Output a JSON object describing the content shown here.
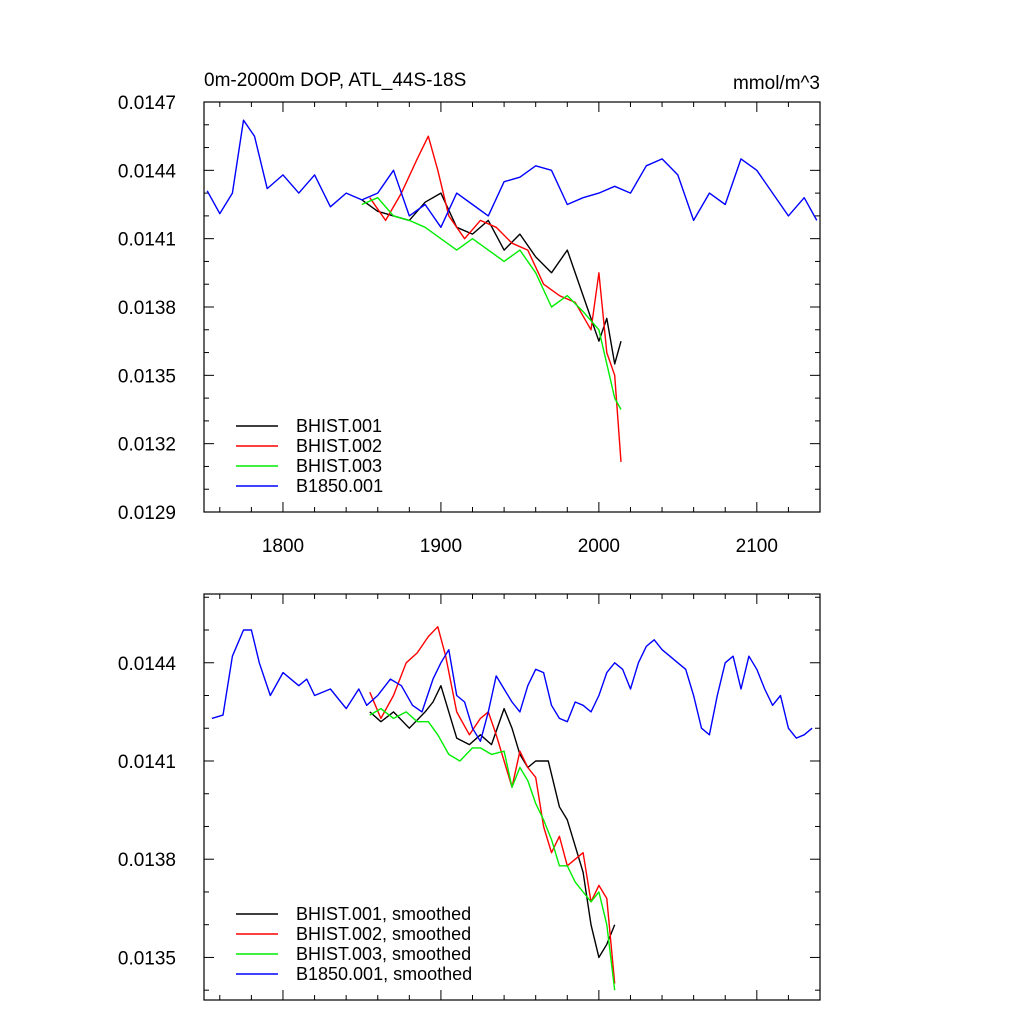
{
  "chart_data": [
    {
      "type": "line",
      "title": "0m-2000m DOP, ATL_44S-18S",
      "units": "mmol/m^3",
      "xlabel": "",
      "ylabel": "",
      "xlim": [
        1750,
        2140
      ],
      "ylim": [
        0.0129,
        0.0147
      ],
      "x_ticks": [
        1800,
        1900,
        2000,
        2100
      ],
      "x_tick_labels": [
        "1800",
        "1900",
        "2000",
        "2100"
      ],
      "y_ticks": [
        0.0129,
        0.0132,
        0.0135,
        0.0138,
        0.0141,
        0.0144,
        0.0147
      ],
      "y_tick_labels": [
        "0.0129",
        "0.0132",
        "0.0135",
        "0.0138",
        "0.0141",
        "0.0144",
        "0.0147"
      ],
      "legend_position": "bottom-left",
      "grid": false,
      "series": [
        {
          "name": "BHIST.001",
          "color": "#000000",
          "x": [
            1850,
            1860,
            1870,
            1880,
            1890,
            1900,
            1910,
            1920,
            1930,
            1940,
            1950,
            1960,
            1970,
            1980,
            1990,
            2000,
            2005,
            2010,
            2014
          ],
          "y": [
            0.01427,
            0.01422,
            0.0142,
            0.01418,
            0.01426,
            0.0143,
            0.01415,
            0.01412,
            0.01418,
            0.01405,
            0.01412,
            0.01402,
            0.01395,
            0.01405,
            0.01385,
            0.01365,
            0.01375,
            0.01355,
            0.01365
          ]
        },
        {
          "name": "BHIST.002",
          "color": "#ff0000",
          "x": [
            1855,
            1865,
            1875,
            1885,
            1892,
            1898,
            1905,
            1915,
            1925,
            1935,
            1945,
            1955,
            1965,
            1975,
            1985,
            1995,
            2000,
            2005,
            2010,
            2014
          ],
          "y": [
            0.01428,
            0.01418,
            0.0143,
            0.01445,
            0.01455,
            0.0144,
            0.0142,
            0.0141,
            0.01418,
            0.01415,
            0.01408,
            0.01405,
            0.0139,
            0.01385,
            0.01382,
            0.0137,
            0.01395,
            0.0136,
            0.0135,
            0.01312
          ]
        },
        {
          "name": "BHIST.003",
          "color": "#00ee00",
          "x": [
            1850,
            1860,
            1870,
            1880,
            1890,
            1900,
            1910,
            1920,
            1930,
            1940,
            1950,
            1960,
            1970,
            1980,
            1990,
            2000,
            2005,
            2010,
            2014
          ],
          "y": [
            0.01425,
            0.01428,
            0.0142,
            0.01418,
            0.01415,
            0.0141,
            0.01405,
            0.0141,
            0.01405,
            0.014,
            0.01405,
            0.01395,
            0.0138,
            0.01385,
            0.01378,
            0.0137,
            0.01355,
            0.0134,
            0.01335
          ]
        },
        {
          "name": "B1850.001",
          "color": "#0000ff",
          "x": [
            1752,
            1760,
            1768,
            1775,
            1782,
            1790,
            1800,
            1810,
            1820,
            1830,
            1840,
            1850,
            1860,
            1870,
            1880,
            1890,
            1900,
            1910,
            1920,
            1930,
            1940,
            1950,
            1960,
            1970,
            1980,
            1990,
            2000,
            2010,
            2020,
            2030,
            2040,
            2050,
            2060,
            2070,
            2080,
            2090,
            2100,
            2110,
            2120,
            2130,
            2138
          ],
          "y": [
            0.01431,
            0.01421,
            0.0143,
            0.01462,
            0.01455,
            0.01432,
            0.01438,
            0.0143,
            0.01438,
            0.01424,
            0.0143,
            0.01427,
            0.0143,
            0.0144,
            0.0142,
            0.01425,
            0.01415,
            0.0143,
            0.01425,
            0.0142,
            0.01435,
            0.01437,
            0.01442,
            0.0144,
            0.01425,
            0.01428,
            0.0143,
            0.01433,
            0.0143,
            0.01442,
            0.01445,
            0.01438,
            0.01418,
            0.0143,
            0.01425,
            0.01445,
            0.0144,
            0.0143,
            0.0142,
            0.01428,
            0.01418
          ]
        }
      ]
    },
    {
      "type": "line",
      "title": "",
      "xlabel": "",
      "ylabel": "",
      "xlim": [
        1750,
        2140
      ],
      "ylim": [
        0.01337,
        0.01461
      ],
      "x_ticks": [
        1800,
        1900,
        2000,
        2100
      ],
      "y_ticks": [
        0.0135,
        0.0138,
        0.0141,
        0.0144
      ],
      "y_tick_labels": [
        "0.0135",
        "0.0138",
        "0.0141",
        "0.0144"
      ],
      "legend_position": "bottom-left",
      "grid": false,
      "series": [
        {
          "name": "BHIST.001, smoothed",
          "color": "#000000",
          "x": [
            1855,
            1862,
            1870,
            1880,
            1890,
            1895,
            1900,
            1905,
            1910,
            1918,
            1925,
            1932,
            1940,
            1945,
            1950,
            1955,
            1960,
            1968,
            1975,
            1980,
            1985,
            1990,
            1995,
            2000,
            2005,
            2010
          ],
          "y": [
            0.01425,
            0.01422,
            0.01425,
            0.0142,
            0.01425,
            0.01428,
            0.01433,
            0.01425,
            0.01417,
            0.01415,
            0.01418,
            0.01415,
            0.01426,
            0.0142,
            0.01412,
            0.01408,
            0.0141,
            0.0141,
            0.01396,
            0.01392,
            0.01384,
            0.01376,
            0.0136,
            0.0135,
            0.01354,
            0.0136
          ]
        },
        {
          "name": "BHIST.002, smoothed",
          "color": "#ff0000",
          "x": [
            1855,
            1862,
            1870,
            1878,
            1885,
            1892,
            1898,
            1903,
            1910,
            1918,
            1925,
            1930,
            1935,
            1940,
            1945,
            1950,
            1955,
            1960,
            1965,
            1970,
            1975,
            1980,
            1985,
            1990,
            1995,
            2000,
            2005,
            2010
          ],
          "y": [
            0.01431,
            0.01423,
            0.0143,
            0.0144,
            0.01443,
            0.01448,
            0.01451,
            0.01442,
            0.01425,
            0.01418,
            0.01423,
            0.01425,
            0.01418,
            0.0141,
            0.01402,
            0.01413,
            0.01408,
            0.01405,
            0.0139,
            0.01382,
            0.01387,
            0.01378,
            0.0138,
            0.01382,
            0.01367,
            0.01372,
            0.01368,
            0.01342
          ]
        },
        {
          "name": "BHIST.003, smoothed",
          "color": "#00ee00",
          "x": [
            1855,
            1862,
            1870,
            1878,
            1885,
            1892,
            1898,
            1905,
            1912,
            1920,
            1925,
            1932,
            1940,
            1945,
            1950,
            1955,
            1960,
            1965,
            1970,
            1975,
            1980,
            1985,
            1990,
            1995,
            2000,
            2005,
            2010
          ],
          "y": [
            0.01424,
            0.01426,
            0.01423,
            0.01425,
            0.01422,
            0.01422,
            0.01418,
            0.01412,
            0.0141,
            0.01414,
            0.01414,
            0.01412,
            0.01413,
            0.01402,
            0.01408,
            0.01404,
            0.01397,
            0.01392,
            0.01386,
            0.01378,
            0.01378,
            0.01373,
            0.0137,
            0.01367,
            0.0137,
            0.0136,
            0.0134
          ]
        },
        {
          "name": "B1850.001, smoothed",
          "color": "#0000ff",
          "x": [
            1755,
            1762,
            1768,
            1775,
            1780,
            1785,
            1792,
            1800,
            1810,
            1815,
            1820,
            1830,
            1840,
            1848,
            1853,
            1860,
            1868,
            1875,
            1882,
            1888,
            1895,
            1900,
            1905,
            1910,
            1915,
            1920,
            1925,
            1930,
            1935,
            1940,
            1945,
            1950,
            1955,
            1960,
            1965,
            1970,
            1975,
            1980,
            1985,
            1990,
            1995,
            2000,
            2005,
            2010,
            2015,
            2020,
            2025,
            2030,
            2035,
            2040,
            2045,
            2050,
            2055,
            2060,
            2065,
            2070,
            2075,
            2080,
            2085,
            2090,
            2095,
            2100,
            2105,
            2110,
            2115,
            2120,
            2125,
            2130,
            2135
          ],
          "y": [
            0.01423,
            0.01424,
            0.01442,
            0.0145,
            0.0145,
            0.0144,
            0.0143,
            0.01437,
            0.01433,
            0.01435,
            0.0143,
            0.01432,
            0.01426,
            0.01432,
            0.01427,
            0.0143,
            0.01435,
            0.01433,
            0.01427,
            0.01425,
            0.01435,
            0.0144,
            0.01444,
            0.0143,
            0.01428,
            0.0142,
            0.01416,
            0.01425,
            0.01436,
            0.01432,
            0.01428,
            0.01425,
            0.01433,
            0.01438,
            0.01437,
            0.01427,
            0.01423,
            0.01422,
            0.01428,
            0.01427,
            0.01425,
            0.0143,
            0.01437,
            0.0144,
            0.01438,
            0.01432,
            0.0144,
            0.01445,
            0.01447,
            0.01444,
            0.01442,
            0.0144,
            0.01438,
            0.0143,
            0.0142,
            0.01418,
            0.0143,
            0.0144,
            0.01442,
            0.01432,
            0.01442,
            0.01438,
            0.01432,
            0.01427,
            0.0143,
            0.0142,
            0.01417,
            0.01418,
            0.0142
          ]
        }
      ]
    }
  ]
}
